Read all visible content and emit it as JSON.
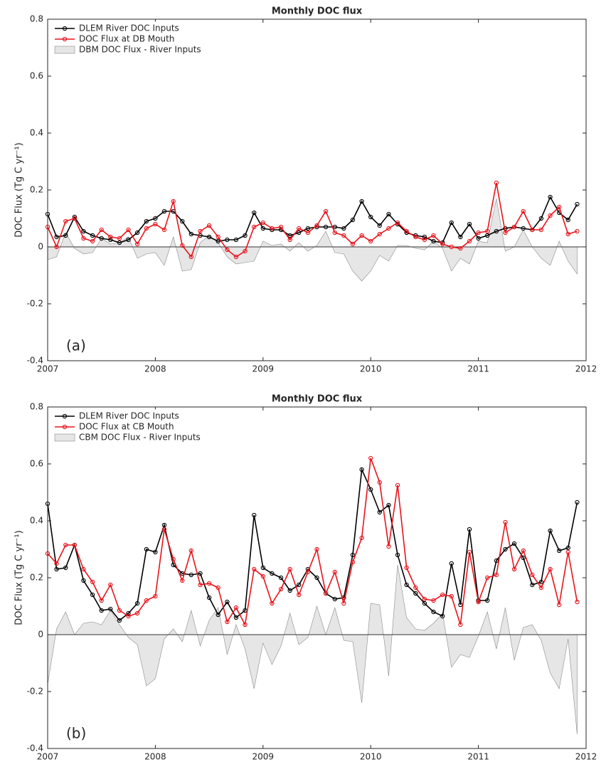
{
  "chart_data": [
    {
      "type": "line",
      "title": "Monthly DOC flux",
      "y_label": "DOC Flux (Tg C yr⁻¹)",
      "annotation": "(a)",
      "x": [
        2007,
        2007.083,
        2007.167,
        2007.25,
        2007.333,
        2007.417,
        2007.5,
        2007.583,
        2007.667,
        2007.75,
        2007.833,
        2007.917,
        2008,
        2008.083,
        2008.167,
        2008.25,
        2008.333,
        2008.417,
        2008.5,
        2008.583,
        2008.667,
        2008.75,
        2008.833,
        2008.917,
        2009,
        2009.083,
        2009.167,
        2009.25,
        2009.333,
        2009.417,
        2009.5,
        2009.583,
        2009.667,
        2009.75,
        2009.833,
        2009.917,
        2010,
        2010.083,
        2010.167,
        2010.25,
        2010.333,
        2010.417,
        2010.5,
        2010.583,
        2010.667,
        2010.75,
        2010.833,
        2010.917,
        2011,
        2011.083,
        2011.167,
        2011.25,
        2011.333,
        2011.417,
        2011.5,
        2011.583,
        2011.667,
        2011.75,
        2011.833,
        2011.917
      ],
      "xlim": [
        2007,
        2012
      ],
      "xticks": [
        2007,
        2008,
        2009,
        2010,
        2011,
        2012
      ],
      "ylim": [
        -0.4,
        0.8
      ],
      "yticks": [
        -0.4,
        -0.2,
        0,
        0.2,
        0.4,
        0.6,
        0.8
      ],
      "legend": "upper left",
      "series": [
        {
          "name": "DLEM River DOC Inputs",
          "color": "#000000",
          "kind": "line",
          "values": [
            0.115,
            0.035,
            0.04,
            0.105,
            0.055,
            0.04,
            0.03,
            0.025,
            0.015,
            0.025,
            0.05,
            0.09,
            0.1,
            0.125,
            0.125,
            0.09,
            0.045,
            0.04,
            0.035,
            0.02,
            0.025,
            0.025,
            0.04,
            0.12,
            0.065,
            0.06,
            0.06,
            0.04,
            0.05,
            0.065,
            0.07,
            0.07,
            0.07,
            0.065,
            0.095,
            0.16,
            0.105,
            0.075,
            0.115,
            0.08,
            0.05,
            0.04,
            0.035,
            0.02,
            0.015,
            0.085,
            0.035,
            0.08,
            0.03,
            0.04,
            0.055,
            0.065,
            0.07,
            0.065,
            0.06,
            0.1,
            0.175,
            0.12,
            0.095,
            0.15
          ]
        },
        {
          "name": "DOC Flux at DB Mouth",
          "color": "#e8141c",
          "kind": "line",
          "values": [
            0.07,
            0.0,
            0.09,
            0.1,
            0.03,
            0.02,
            0.06,
            0.035,
            0.03,
            0.06,
            0.01,
            0.065,
            0.08,
            0.06,
            0.16,
            0.005,
            -0.035,
            0.055,
            0.075,
            0.035,
            -0.01,
            -0.035,
            -0.015,
            0.07,
            0.085,
            0.065,
            0.07,
            0.025,
            0.065,
            0.05,
            0.075,
            0.125,
            0.05,
            0.04,
            0.01,
            0.04,
            0.02,
            0.045,
            0.065,
            0.085,
            0.055,
            0.035,
            0.025,
            0.04,
            0.01,
            0.0,
            -0.005,
            0.02,
            0.05,
            0.055,
            0.225,
            0.05,
            0.07,
            0.125,
            0.06,
            0.06,
            0.11,
            0.14,
            0.045,
            0.055
          ]
        },
        {
          "name": "DBM DOC Flux - River Inputs",
          "color": "#e6e6e6",
          "kind": "area",
          "values": [
            -0.045,
            -0.035,
            0.05,
            -0.005,
            -0.025,
            -0.02,
            0.03,
            0.01,
            0.015,
            0.035,
            -0.04,
            -0.025,
            -0.02,
            -0.065,
            0.035,
            -0.085,
            -0.08,
            0.015,
            0.04,
            0.015,
            -0.035,
            -0.06,
            -0.055,
            -0.05,
            0.02,
            0.005,
            0.01,
            -0.015,
            0.015,
            -0.015,
            0.005,
            0.055,
            -0.02,
            -0.025,
            -0.085,
            -0.12,
            -0.085,
            -0.03,
            -0.05,
            0.005,
            0.005,
            -0.005,
            -0.01,
            0.02,
            -0.005,
            -0.085,
            -0.04,
            -0.06,
            0.02,
            0.015,
            0.17,
            -0.015,
            0.0,
            0.06,
            0.0,
            -0.04,
            -0.065,
            0.02,
            -0.05,
            -0.095
          ]
        }
      ]
    },
    {
      "type": "line",
      "title": "Monthly DOC flux",
      "y_label": "DOC Flux (Tg C yr⁻¹)",
      "annotation": "(b)",
      "x": [
        2007,
        2007.083,
        2007.167,
        2007.25,
        2007.333,
        2007.417,
        2007.5,
        2007.583,
        2007.667,
        2007.75,
        2007.833,
        2007.917,
        2008,
        2008.083,
        2008.167,
        2008.25,
        2008.333,
        2008.417,
        2008.5,
        2008.583,
        2008.667,
        2008.75,
        2008.833,
        2008.917,
        2009,
        2009.083,
        2009.167,
        2009.25,
        2009.333,
        2009.417,
        2009.5,
        2009.583,
        2009.667,
        2009.75,
        2009.833,
        2009.917,
        2010,
        2010.083,
        2010.167,
        2010.25,
        2010.333,
        2010.417,
        2010.5,
        2010.583,
        2010.667,
        2010.75,
        2010.833,
        2010.917,
        2011,
        2011.083,
        2011.167,
        2011.25,
        2011.333,
        2011.417,
        2011.5,
        2011.583,
        2011.667,
        2011.75,
        2011.833,
        2011.917
      ],
      "xlim": [
        2007,
        2012
      ],
      "xticks": [
        2007,
        2008,
        2009,
        2010,
        2011,
        2012
      ],
      "ylim": [
        -0.4,
        0.8
      ],
      "yticks": [
        -0.4,
        -0.2,
        0,
        0.2,
        0.4,
        0.6,
        0.8
      ],
      "legend": "upper left",
      "series": [
        {
          "name": "DLEM River DOC Inputs",
          "color": "#000000",
          "kind": "line",
          "values": [
            0.46,
            0.23,
            0.235,
            0.315,
            0.19,
            0.14,
            0.085,
            0.09,
            0.05,
            0.075,
            0.11,
            0.3,
            0.29,
            0.385,
            0.245,
            0.215,
            0.21,
            0.215,
            0.13,
            0.07,
            0.115,
            0.06,
            0.085,
            0.42,
            0.235,
            0.215,
            0.2,
            0.155,
            0.175,
            0.23,
            0.2,
            0.145,
            0.125,
            0.13,
            0.28,
            0.58,
            0.51,
            0.43,
            0.455,
            0.28,
            0.175,
            0.145,
            0.11,
            0.08,
            0.065,
            0.25,
            0.105,
            0.37,
            0.12,
            0.12,
            0.26,
            0.3,
            0.32,
            0.27,
            0.175,
            0.185,
            0.365,
            0.295,
            0.305,
            0.465
          ]
        },
        {
          "name": "DOC Flux at CB Mouth",
          "color": "#e8141c",
          "kind": "line",
          "values": [
            0.285,
            0.25,
            0.315,
            0.315,
            0.23,
            0.185,
            0.12,
            0.175,
            0.085,
            0.065,
            0.075,
            0.12,
            0.135,
            0.37,
            0.265,
            0.19,
            0.295,
            0.175,
            0.18,
            0.165,
            0.045,
            0.095,
            0.035,
            0.23,
            0.205,
            0.11,
            0.16,
            0.23,
            0.14,
            0.22,
            0.3,
            0.145,
            0.22,
            0.11,
            0.255,
            0.34,
            0.62,
            0.535,
            0.31,
            0.525,
            0.235,
            0.165,
            0.125,
            0.12,
            0.14,
            0.135,
            0.035,
            0.29,
            0.115,
            0.2,
            0.21,
            0.395,
            0.23,
            0.295,
            0.21,
            0.165,
            0.23,
            0.105,
            0.29,
            0.115
          ]
        },
        {
          "name": "CBM DOC Flux - River Inputs",
          "color": "#e6e6e6",
          "kind": "area",
          "values": [
            -0.175,
            0.02,
            0.08,
            0.0,
            0.04,
            0.045,
            0.035,
            0.085,
            0.035,
            -0.01,
            -0.035,
            -0.18,
            -0.155,
            -0.015,
            0.02,
            -0.025,
            0.085,
            -0.04,
            0.05,
            0.095,
            -0.07,
            0.035,
            -0.05,
            -0.19,
            -0.03,
            -0.105,
            -0.04,
            0.075,
            -0.035,
            -0.01,
            0.1,
            0.0,
            0.095,
            -0.02,
            -0.025,
            -0.24,
            0.11,
            0.105,
            -0.145,
            0.245,
            0.06,
            0.02,
            0.015,
            0.04,
            0.075,
            -0.115,
            -0.07,
            -0.08,
            -0.005,
            0.08,
            -0.05,
            0.095,
            -0.09,
            0.025,
            0.035,
            -0.02,
            -0.135,
            -0.19,
            -0.015,
            -0.35
          ]
        }
      ]
    }
  ]
}
